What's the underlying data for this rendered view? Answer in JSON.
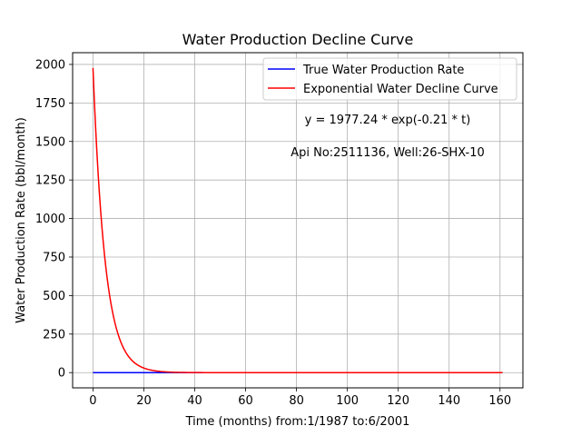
{
  "chart_data": {
    "type": "line",
    "title": "Water Production Decline Curve",
    "xlabel": "Time (months) from:1/1987 to:6/2001",
    "ylabel": "Water Production Rate (bbl/month)",
    "xlim": [
      -8,
      169
    ],
    "ylim": [
      -98.9,
      2076.2
    ],
    "xticks": [
      0,
      20,
      40,
      60,
      80,
      100,
      120,
      140,
      160
    ],
    "yticks": [
      0,
      250,
      500,
      750,
      1000,
      1250,
      1500,
      1750,
      2000
    ],
    "grid": true,
    "legend_position": "top-right",
    "series": [
      {
        "name": "True Water Production Rate",
        "color": "#0000ff",
        "x": [
          0,
          161
        ],
        "y": [
          0,
          0
        ]
      },
      {
        "name": "Exponential Water Decline Curve",
        "color": "#ff0000",
        "model": {
          "a": 1977.24,
          "b": 0.21
        },
        "x_range": [
          0,
          161
        ]
      }
    ],
    "annotations": [
      "y = 1977.24 * exp(-0.21 * t)",
      "Api No:2511136, Well:26-SHX-10"
    ]
  }
}
